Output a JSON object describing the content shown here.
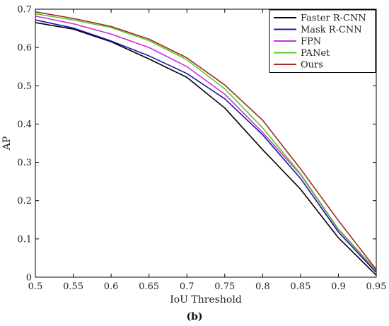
{
  "chart_data": {
    "type": "line",
    "title": "",
    "xlabel": "IoU Threshold",
    "ylabel": "AP",
    "caption": "(b)",
    "xlim": [
      0.5,
      0.95
    ],
    "ylim": [
      0,
      0.7
    ],
    "x_ticks": [
      "0.5",
      "0.55",
      "0.6",
      "0.65",
      "0.7",
      "0.75",
      "0.8",
      "0.85",
      "0.9",
      "0.95"
    ],
    "y_ticks": [
      "0",
      "0.1",
      "0.2",
      "0.3",
      "0.4",
      "0.5",
      "0.6",
      "0.7"
    ],
    "grid": false,
    "legend_position": "top-right",
    "x": [
      0.5,
      0.55,
      0.6,
      0.65,
      0.7,
      0.75,
      0.8,
      0.85,
      0.9,
      0.95
    ],
    "series": [
      {
        "name": "Faster R-CNN",
        "color": "#000000",
        "values": [
          0.665,
          0.648,
          0.615,
          0.57,
          0.522,
          0.442,
          0.333,
          0.23,
          0.103,
          0.005
        ]
      },
      {
        "name": "Mask R-CNN",
        "color": "#1a1aa8",
        "values": [
          0.672,
          0.651,
          0.617,
          0.578,
          0.532,
          0.466,
          0.372,
          0.258,
          0.118,
          0.012
        ]
      },
      {
        "name": "FPN",
        "color": "#cc33dd",
        "values": [
          0.682,
          0.662,
          0.635,
          0.6,
          0.55,
          0.478,
          0.378,
          0.268,
          0.124,
          0.016
        ]
      },
      {
        "name": "PANet",
        "color": "#55cc22",
        "values": [
          0.688,
          0.672,
          0.652,
          0.618,
          0.568,
          0.492,
          0.39,
          0.27,
          0.126,
          0.018
        ]
      },
      {
        "name": "Ours",
        "color": "#a52a2a",
        "values": [
          0.693,
          0.676,
          0.655,
          0.622,
          0.573,
          0.502,
          0.41,
          0.283,
          0.148,
          0.02
        ]
      }
    ]
  }
}
